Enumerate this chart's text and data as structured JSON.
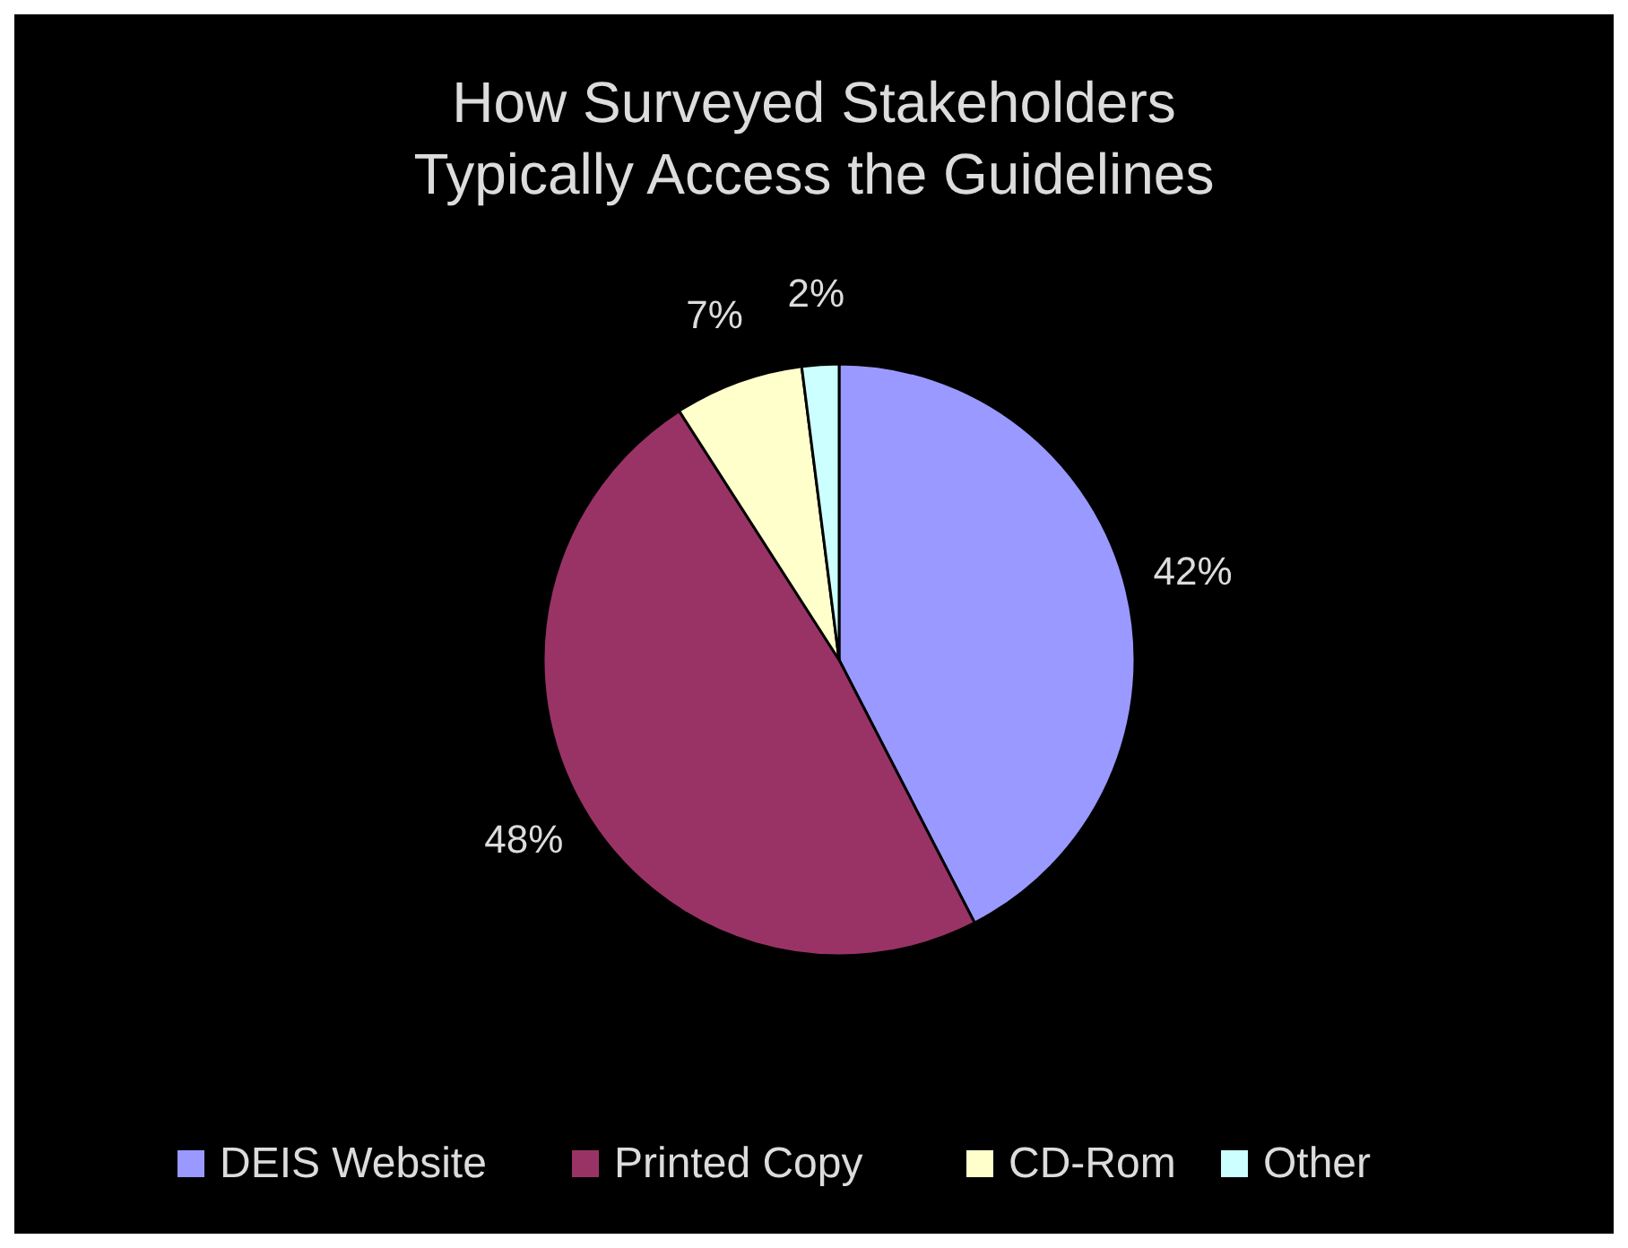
{
  "chart_data": {
    "type": "pie",
    "title": "How Surveyed Stakeholders Typically Access the Guidelines",
    "categories": [
      "DEIS Website",
      "Printed Copy",
      "CD-Rom",
      "Other"
    ],
    "values": [
      42,
      48,
      7,
      2
    ],
    "value_labels": [
      "42%",
      "48%",
      "7%",
      "2%"
    ],
    "colors": [
      "#9999ff",
      "#993366",
      "#ffffcc",
      "#ccffff"
    ],
    "legend": "bottom"
  }
}
